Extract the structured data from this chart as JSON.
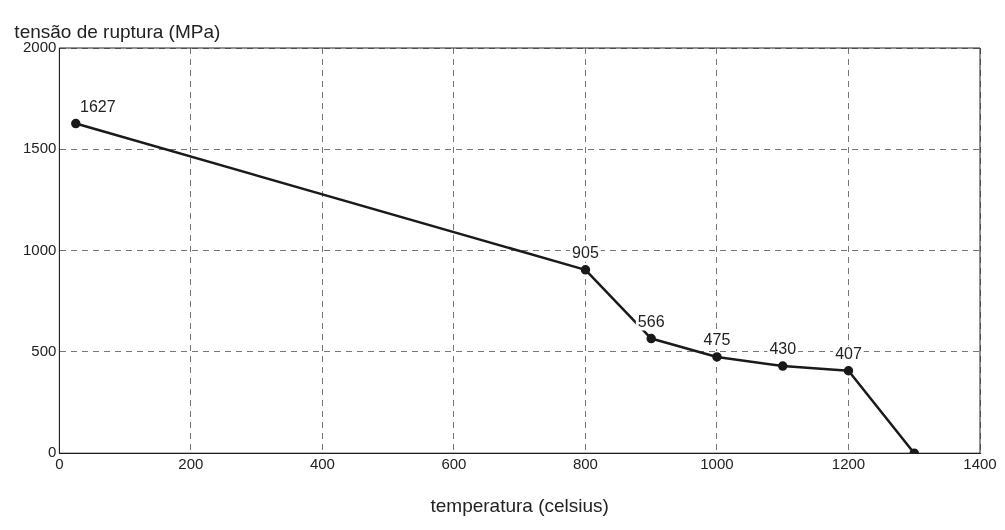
{
  "chart_data": {
    "type": "line",
    "xlabel": "temperatura (celsius)",
    "ylabel": "tensão de ruptura (MPa)",
    "x": [
      25,
      800,
      900,
      1000,
      1100,
      1200,
      1300
    ],
    "series": [
      {
        "color": "#1a1a1a",
        "values": [
          1627,
          905,
          566,
          475,
          430,
          407,
          0
        ],
        "value_labels": [
          "1627",
          "905",
          "566",
          "475",
          "430",
          "407",
          null
        ]
      }
    ],
    "xlim": [
      0,
      1400
    ],
    "xticks": [
      0,
      200,
      400,
      600,
      800,
      1000,
      1200,
      1400
    ],
    "ylim": [
      0,
      2000
    ],
    "yticks": [
      0,
      500,
      1000,
      1500,
      2000
    ],
    "grid": true,
    "legend": false,
    "marker": "circle",
    "line_style": "solid"
  }
}
